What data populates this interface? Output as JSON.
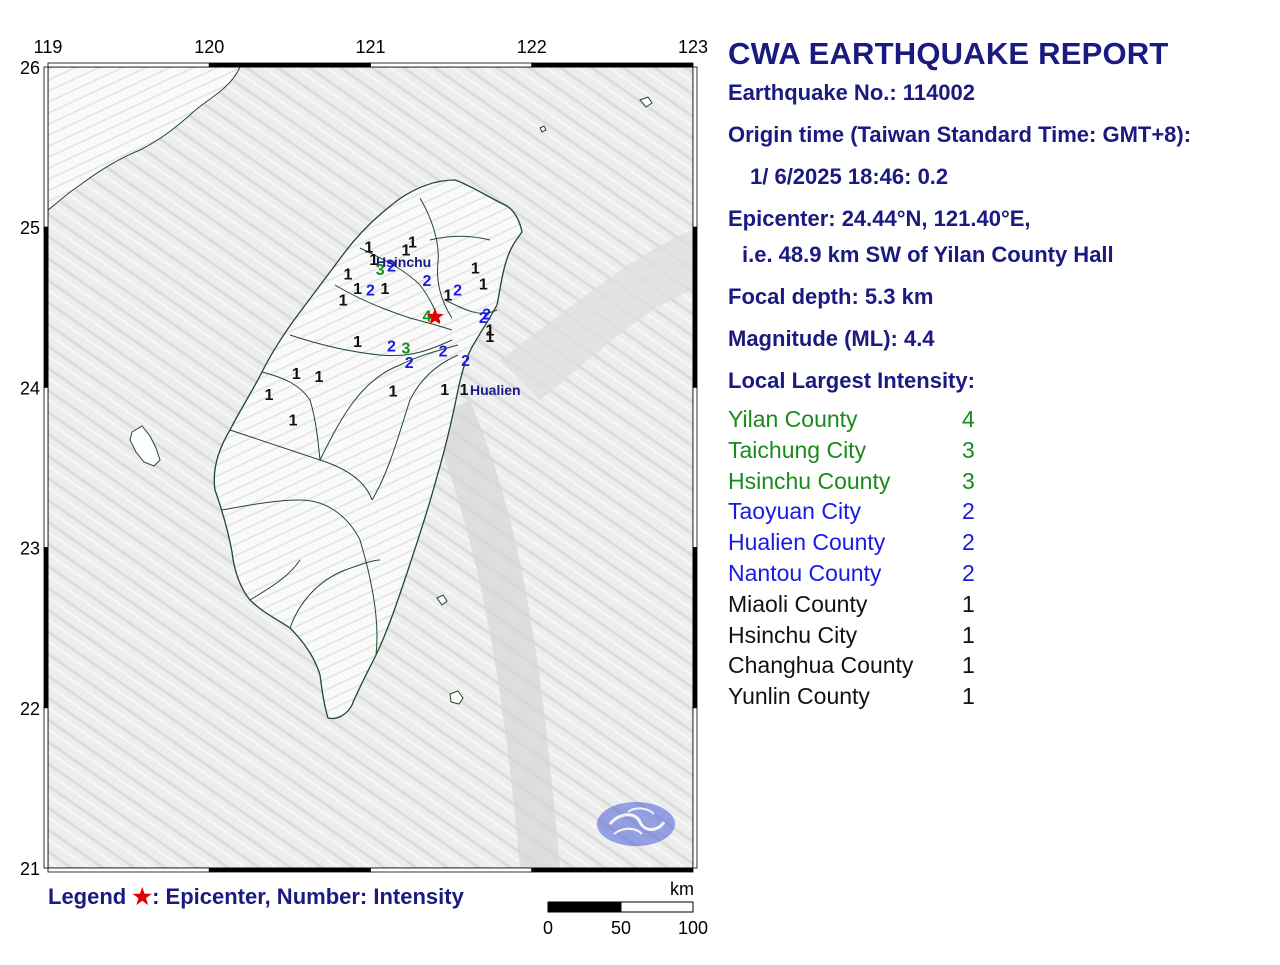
{
  "report": {
    "title": "CWA EARTHQUAKE REPORT",
    "earthquake_no": "Earthquake No.: 114002",
    "origin_label": "Origin time (Taiwan Standard Time: GMT+8):",
    "origin_time": "1/ 6/2025 18:46: 0.2",
    "epicenter": "Epicenter: 24.44°N, 121.40°E,",
    "epicenter_rel": "i.e. 48.9 km SW of Yilan County Hall",
    "depth": "Focal depth: 5.3 km",
    "magnitude": "Magnitude (ML): 4.4",
    "intensity_header": "Local Largest Intensity:",
    "intensities": [
      {
        "county": "Yilan County",
        "value": "4",
        "color": "#1a8a1a"
      },
      {
        "county": "Taichung City",
        "value": "3",
        "color": "#1a8a1a"
      },
      {
        "county": "Hsinchu County",
        "value": "3",
        "color": "#1a8a1a"
      },
      {
        "county": "Taoyuan City",
        "value": "2",
        "color": "#1a1ae6"
      },
      {
        "county": "Hualien County",
        "value": "2",
        "color": "#1a1ae6"
      },
      {
        "county": "Nantou County",
        "value": "2",
        "color": "#1a1ae6"
      },
      {
        "county": "Miaoli County",
        "value": "1",
        "color": "#111111"
      },
      {
        "county": "Hsinchu City",
        "value": "1",
        "color": "#111111"
      },
      {
        "county": "Changhua County",
        "value": "1",
        "color": "#111111"
      },
      {
        "county": "Yunlin County",
        "value": "1",
        "color": "#111111"
      }
    ]
  },
  "map": {
    "lon_labels": [
      "119",
      "120",
      "121",
      "122",
      "123"
    ],
    "lat_labels": [
      "26",
      "25",
      "24",
      "23",
      "22",
      "21"
    ],
    "cities": [
      "Hsinchu",
      "Hualien"
    ],
    "epicenter": {
      "lat": 24.44,
      "lon": 121.4
    },
    "stations": [
      {
        "lat": 24.45,
        "lon": 121.35,
        "value": "4",
        "color": "#1a8a1a"
      },
      {
        "lat": 24.74,
        "lon": 121.06,
        "value": "3",
        "color": "#1a8a1a"
      },
      {
        "lat": 24.25,
        "lon": 121.22,
        "value": "3",
        "color": "#1a8a1a"
      },
      {
        "lat": 24.76,
        "lon": 121.13,
        "value": "2",
        "color": "#1a1ae6"
      },
      {
        "lat": 24.67,
        "lon": 121.35,
        "value": "2",
        "color": "#1a1ae6"
      },
      {
        "lat": 24.61,
        "lon": 121.54,
        "value": "2",
        "color": "#1a1ae6"
      },
      {
        "lat": 24.26,
        "lon": 121.13,
        "value": "2",
        "color": "#1a1ae6"
      },
      {
        "lat": 24.23,
        "lon": 121.45,
        "value": "2",
        "color": "#1a1ae6"
      },
      {
        "lat": 24.16,
        "lon": 121.24,
        "value": "2",
        "color": "#1a1ae6"
      },
      {
        "lat": 24.17,
        "lon": 121.59,
        "value": "2",
        "color": "#1a1ae6"
      },
      {
        "lat": 24.46,
        "lon": 121.72,
        "value": "2",
        "color": "#1a1ae6"
      },
      {
        "lat": 24.44,
        "lon": 121.7,
        "value": "2",
        "color": "#1a1ae6"
      },
      {
        "lat": 24.61,
        "lon": 121.0,
        "value": "2",
        "color": "#1a1ae6"
      },
      {
        "lat": 24.88,
        "lon": 120.99,
        "value": "1",
        "color": "#111111"
      },
      {
        "lat": 24.8,
        "lon": 121.02,
        "value": "1",
        "color": "#111111"
      },
      {
        "lat": 24.91,
        "lon": 121.26,
        "value": "1",
        "color": "#111111"
      },
      {
        "lat": 24.86,
        "lon": 121.22,
        "value": "1",
        "color": "#111111"
      },
      {
        "lat": 24.71,
        "lon": 120.86,
        "value": "1",
        "color": "#111111"
      },
      {
        "lat": 24.62,
        "lon": 120.92,
        "value": "1",
        "color": "#111111"
      },
      {
        "lat": 24.55,
        "lon": 120.83,
        "value": "1",
        "color": "#111111"
      },
      {
        "lat": 24.62,
        "lon": 121.09,
        "value": "1",
        "color": "#111111"
      },
      {
        "lat": 24.75,
        "lon": 121.65,
        "value": "1",
        "color": "#111111"
      },
      {
        "lat": 24.65,
        "lon": 121.7,
        "value": "1",
        "color": "#111111"
      },
      {
        "lat": 24.58,
        "lon": 121.48,
        "value": "1",
        "color": "#111111"
      },
      {
        "lat": 24.32,
        "lon": 121.74,
        "value": "1",
        "color": "#111111"
      },
      {
        "lat": 24.36,
        "lon": 121.74,
        "value": "1",
        "color": "#111111"
      },
      {
        "lat": 24.29,
        "lon": 120.92,
        "value": "1",
        "color": "#111111"
      },
      {
        "lat": 24.09,
        "lon": 120.54,
        "value": "1",
        "color": "#111111"
      },
      {
        "lat": 24.07,
        "lon": 120.68,
        "value": "1",
        "color": "#111111"
      },
      {
        "lat": 23.96,
        "lon": 120.37,
        "value": "1",
        "color": "#111111"
      },
      {
        "lat": 23.8,
        "lon": 120.52,
        "value": "1",
        "color": "#111111"
      },
      {
        "lat": 23.98,
        "lon": 121.14,
        "value": "1",
        "color": "#111111"
      },
      {
        "lat": 23.99,
        "lon": 121.46,
        "value": "1",
        "color": "#111111"
      },
      {
        "lat": 23.99,
        "lon": 121.58,
        "value": "1",
        "color": "#111111"
      }
    ],
    "scale_unit": "km",
    "scale_labels": [
      "0",
      "50",
      "100"
    ]
  },
  "legend": {
    "label": "Legend",
    "star": "★",
    "text": ": Epicenter, Number: Intensity"
  },
  "colors": {
    "text": "#1a1a80",
    "epicenter": "#e00000",
    "ocean": "#f2f2f2",
    "land": "#ffffff",
    "border": "#1e4a2a"
  }
}
